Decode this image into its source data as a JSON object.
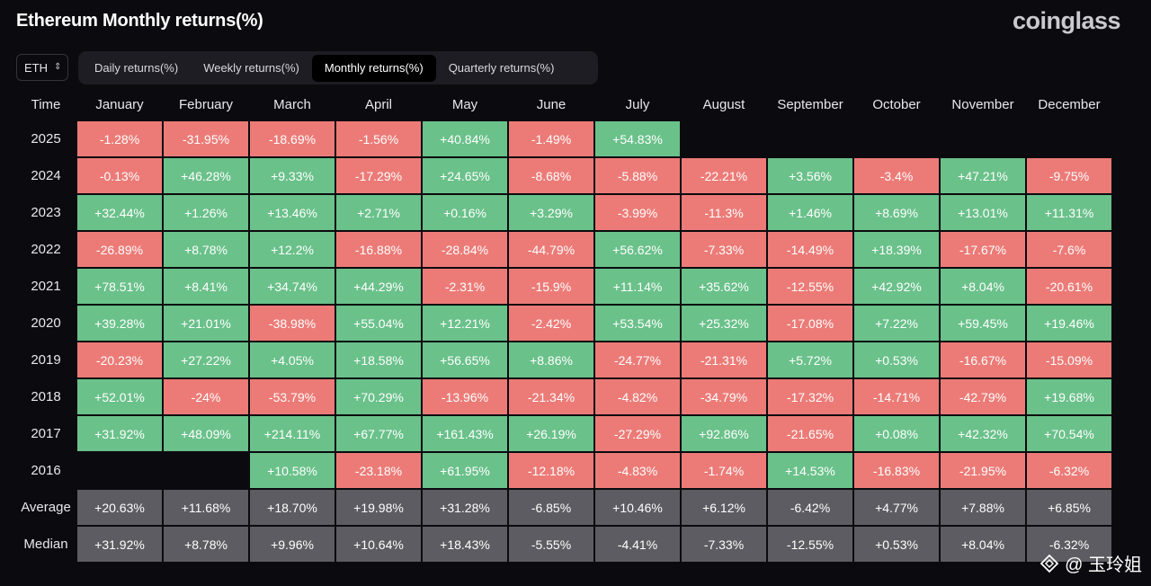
{
  "title": "Ethereum Monthly returns(%)",
  "brand": "coinglass",
  "asset_selector": {
    "value": "ETH"
  },
  "tabs": [
    {
      "label": "Daily returns(%)",
      "active": false
    },
    {
      "label": "Weekly returns(%)",
      "active": false
    },
    {
      "label": "Monthly returns(%)",
      "active": true
    },
    {
      "label": "Quarterly returns(%)",
      "active": false
    }
  ],
  "colors": {
    "positive": "#6ac18a",
    "negative": "#ec7b77",
    "summary": "#5c5c62",
    "background": "#0b0b0f"
  },
  "watermark": {
    "text": "@ 玉玲姐"
  },
  "chart_data": {
    "type": "table",
    "title": "Ethereum Monthly returns(%)",
    "corner_label": "Time",
    "columns": [
      "January",
      "February",
      "March",
      "April",
      "May",
      "June",
      "July",
      "August",
      "September",
      "October",
      "November",
      "December"
    ],
    "rows": [
      {
        "label": "2025",
        "values": [
          "-1.28%",
          "-31.95%",
          "-18.69%",
          "-1.56%",
          "+40.84%",
          "-1.49%",
          "+54.83%",
          "",
          "",
          "",
          "",
          ""
        ]
      },
      {
        "label": "2024",
        "values": [
          "-0.13%",
          "+46.28%",
          "+9.33%",
          "-17.29%",
          "+24.65%",
          "-8.68%",
          "-5.88%",
          "-22.21%",
          "+3.56%",
          "-3.4%",
          "+47.21%",
          "-9.75%"
        ]
      },
      {
        "label": "2023",
        "values": [
          "+32.44%",
          "+1.26%",
          "+13.46%",
          "+2.71%",
          "+0.16%",
          "+3.29%",
          "-3.99%",
          "-11.3%",
          "+1.46%",
          "+8.69%",
          "+13.01%",
          "+11.31%"
        ]
      },
      {
        "label": "2022",
        "values": [
          "-26.89%",
          "+8.78%",
          "+12.2%",
          "-16.88%",
          "-28.84%",
          "-44.79%",
          "+56.62%",
          "-7.33%",
          "-14.49%",
          "+18.39%",
          "-17.67%",
          "-7.6%"
        ]
      },
      {
        "label": "2021",
        "values": [
          "+78.51%",
          "+8.41%",
          "+34.74%",
          "+44.29%",
          "-2.31%",
          "-15.9%",
          "+11.14%",
          "+35.62%",
          "-12.55%",
          "+42.92%",
          "+8.04%",
          "-20.61%"
        ]
      },
      {
        "label": "2020",
        "values": [
          "+39.28%",
          "+21.01%",
          "-38.98%",
          "+55.04%",
          "+12.21%",
          "-2.42%",
          "+53.54%",
          "+25.32%",
          "-17.08%",
          "+7.22%",
          "+59.45%",
          "+19.46%"
        ]
      },
      {
        "label": "2019",
        "values": [
          "-20.23%",
          "+27.22%",
          "+4.05%",
          "+18.58%",
          "+56.65%",
          "+8.86%",
          "-24.77%",
          "-21.31%",
          "+5.72%",
          "+0.53%",
          "-16.67%",
          "-15.09%"
        ]
      },
      {
        "label": "2018",
        "values": [
          "+52.01%",
          "-24%",
          "-53.79%",
          "+70.29%",
          "-13.96%",
          "-21.34%",
          "-4.82%",
          "-34.79%",
          "-17.32%",
          "-14.71%",
          "-42.79%",
          "+19.68%"
        ]
      },
      {
        "label": "2017",
        "values": [
          "+31.92%",
          "+48.09%",
          "+214.11%",
          "+67.77%",
          "+161.43%",
          "+26.19%",
          "-27.29%",
          "+92.86%",
          "-21.65%",
          "+0.08%",
          "+42.32%",
          "+70.54%"
        ]
      },
      {
        "label": "2016",
        "values": [
          "",
          "",
          "+10.58%",
          "-23.18%",
          "+61.95%",
          "-12.18%",
          "-4.83%",
          "-1.74%",
          "+14.53%",
          "-16.83%",
          "-21.95%",
          "-6.32%"
        ]
      }
    ],
    "summary_rows": [
      {
        "label": "Average",
        "values": [
          "+20.63%",
          "+11.68%",
          "+18.70%",
          "+19.98%",
          "+31.28%",
          "-6.85%",
          "+10.46%",
          "+6.12%",
          "-6.42%",
          "+4.77%",
          "+7.88%",
          "+6.85%"
        ]
      },
      {
        "label": "Median",
        "values": [
          "+31.92%",
          "+8.78%",
          "+9.96%",
          "+10.64%",
          "+18.43%",
          "-5.55%",
          "-4.41%",
          "-7.33%",
          "-12.55%",
          "+0.53%",
          "+8.04%",
          "-6.32%"
        ]
      }
    ]
  }
}
